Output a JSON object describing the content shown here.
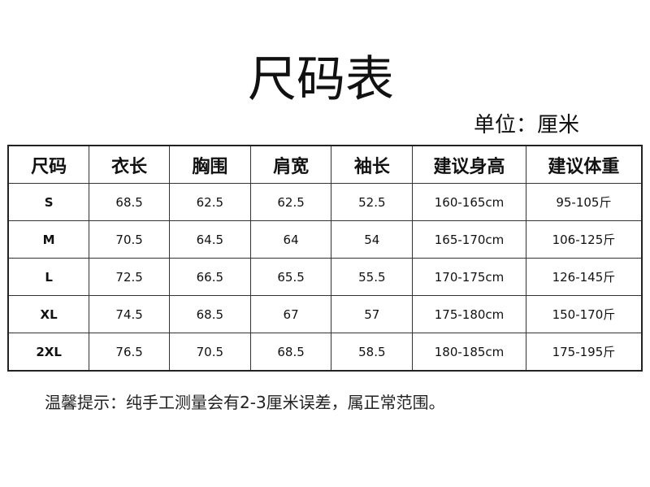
{
  "title": "尺码表",
  "unit": "单位：厘米",
  "table": {
    "headers": [
      "尺码",
      "衣长",
      "胸围",
      "肩宽",
      "袖长",
      "建议身高",
      "建议体重"
    ],
    "rows": [
      [
        "S",
        "68.5",
        "62.5",
        "62.5",
        "52.5",
        "160-165cm",
        "95-105斤"
      ],
      [
        "M",
        "70.5",
        "64.5",
        "64",
        "54",
        "165-170cm",
        "106-125斤"
      ],
      [
        "L",
        "72.5",
        "66.5",
        "65.5",
        "55.5",
        "170-175cm",
        "126-145斤"
      ],
      [
        "XL",
        "74.5",
        "68.5",
        "67",
        "57",
        "175-180cm",
        "150-170斤"
      ],
      [
        "2XL",
        "76.5",
        "70.5",
        "68.5",
        "58.5",
        "180-185cm",
        "175-195斤"
      ]
    ]
  },
  "note": "温馨提示：纯手工测量会有2-3厘米误差，属正常范围。"
}
